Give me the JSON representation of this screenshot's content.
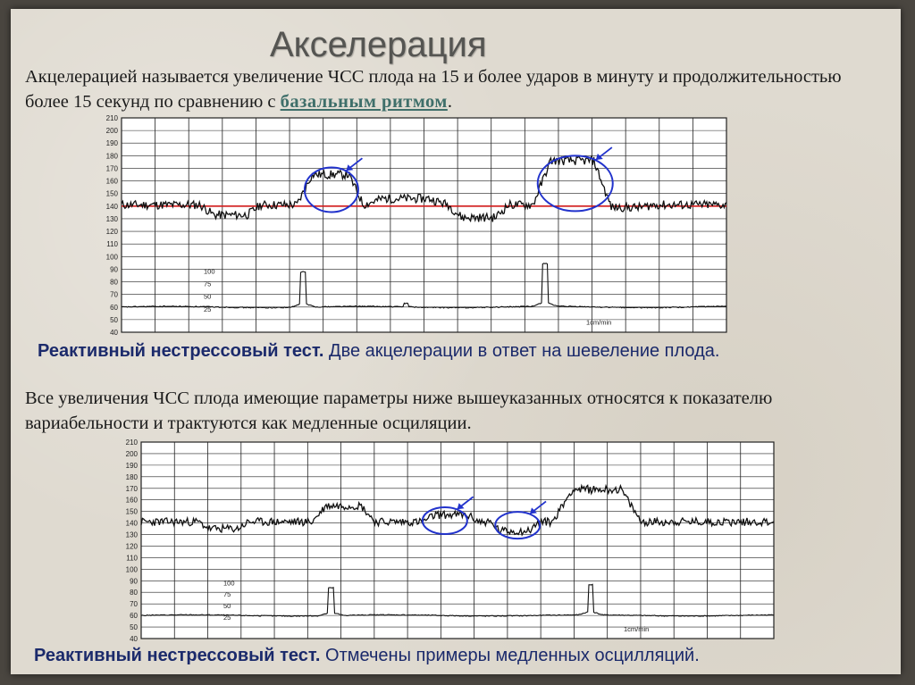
{
  "title": "Акселерация",
  "definition": {
    "text": "Акцелерацией называется увеличение ЧСС плода на 15 и более ударов в минуту и продолжительностью более 15 секунд по сравнению с ",
    "link": "базальным ритмом",
    "end": "."
  },
  "caption1": {
    "bold": "Реактивный нестрессовый тест.",
    "text": " Две акцелерации в ответ на шевеление плода."
  },
  "paragraph2": "Все увеличения ЧСС плода имеющие параметры ниже вышеуказанных относятся к показателю вариабельности и трактуются как медленные осциляции.",
  "caption2": {
    "bold": "Реактивный нестрессовый тест.",
    "text": " Отмечены примеры медленных осцилляций."
  },
  "strip_labels": {
    "y_ticks": [
      "210",
      "200",
      "190",
      "180",
      "170",
      "160",
      "150",
      "140",
      "130",
      "120",
      "110",
      "100",
      "90",
      "80",
      "70",
      "60",
      "50",
      "40"
    ],
    "toco_ticks": [
      "100",
      "75",
      "50",
      "25"
    ],
    "speed": "1cm/min"
  },
  "colors": {
    "baseline": "#d11a1a",
    "highlight": "#2233cc",
    "trace": "#111111",
    "grid": "#222222"
  }
}
